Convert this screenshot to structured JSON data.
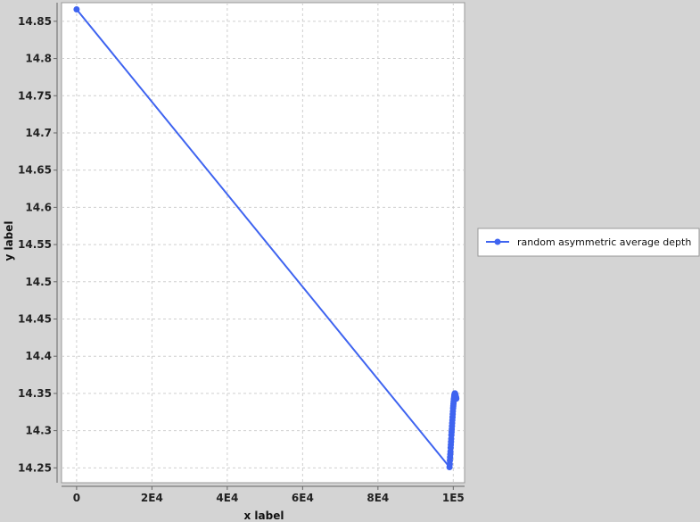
{
  "chart_data": {
    "type": "line",
    "xlabel": "x label",
    "ylabel": "y label",
    "xlim": [
      -4000,
      103000
    ],
    "ylim": [
      14.23,
      14.875
    ],
    "x_ticks": [
      {
        "value": 0,
        "label": "0"
      },
      {
        "value": 20000,
        "label": "2E4"
      },
      {
        "value": 40000,
        "label": "4E4"
      },
      {
        "value": 60000,
        "label": "6E4"
      },
      {
        "value": 80000,
        "label": "8E4"
      },
      {
        "value": 100000,
        "label": "1E5"
      }
    ],
    "y_ticks": [
      {
        "value": 14.25,
        "label": "14.25"
      },
      {
        "value": 14.3,
        "label": "14.3"
      },
      {
        "value": 14.35,
        "label": "14.35"
      },
      {
        "value": 14.4,
        "label": "14.4"
      },
      {
        "value": 14.45,
        "label": "14.45"
      },
      {
        "value": 14.5,
        "label": "14.5"
      },
      {
        "value": 14.55,
        "label": "14.55"
      },
      {
        "value": 14.6,
        "label": "14.6"
      },
      {
        "value": 14.65,
        "label": "14.65"
      },
      {
        "value": 14.7,
        "label": "14.7"
      },
      {
        "value": 14.75,
        "label": "14.75"
      },
      {
        "value": 14.8,
        "label": "14.8"
      },
      {
        "value": 14.85,
        "label": "14.85"
      }
    ],
    "grid": true,
    "legend_position": "right",
    "series": [
      {
        "name": "random asymmetric average depth",
        "color": "#3f64f0",
        "x": [
          0,
          99000,
          99050,
          99100,
          99150,
          99200,
          99250,
          99300,
          99350,
          99400,
          99450,
          99500,
          99550,
          99600,
          99650,
          99700,
          99750,
          99800,
          99850,
          99900,
          99950,
          100000,
          100050,
          100100,
          100150,
          100200,
          100250,
          100300,
          100350,
          100400,
          100450,
          100500,
          100550,
          100600,
          100650,
          100700,
          100750,
          100800
        ],
        "y": [
          14.866,
          14.251,
          14.255,
          14.26,
          14.264,
          14.268,
          14.272,
          14.277,
          14.281,
          14.285,
          14.289,
          14.294,
          14.298,
          14.302,
          14.306,
          14.31,
          14.314,
          14.318,
          14.322,
          14.326,
          14.33,
          14.333,
          14.336,
          14.339,
          14.342,
          14.344,
          14.346,
          14.348,
          14.349,
          14.35,
          14.35,
          14.349,
          14.348,
          14.347,
          14.346,
          14.345,
          14.344,
          14.343
        ]
      }
    ]
  }
}
